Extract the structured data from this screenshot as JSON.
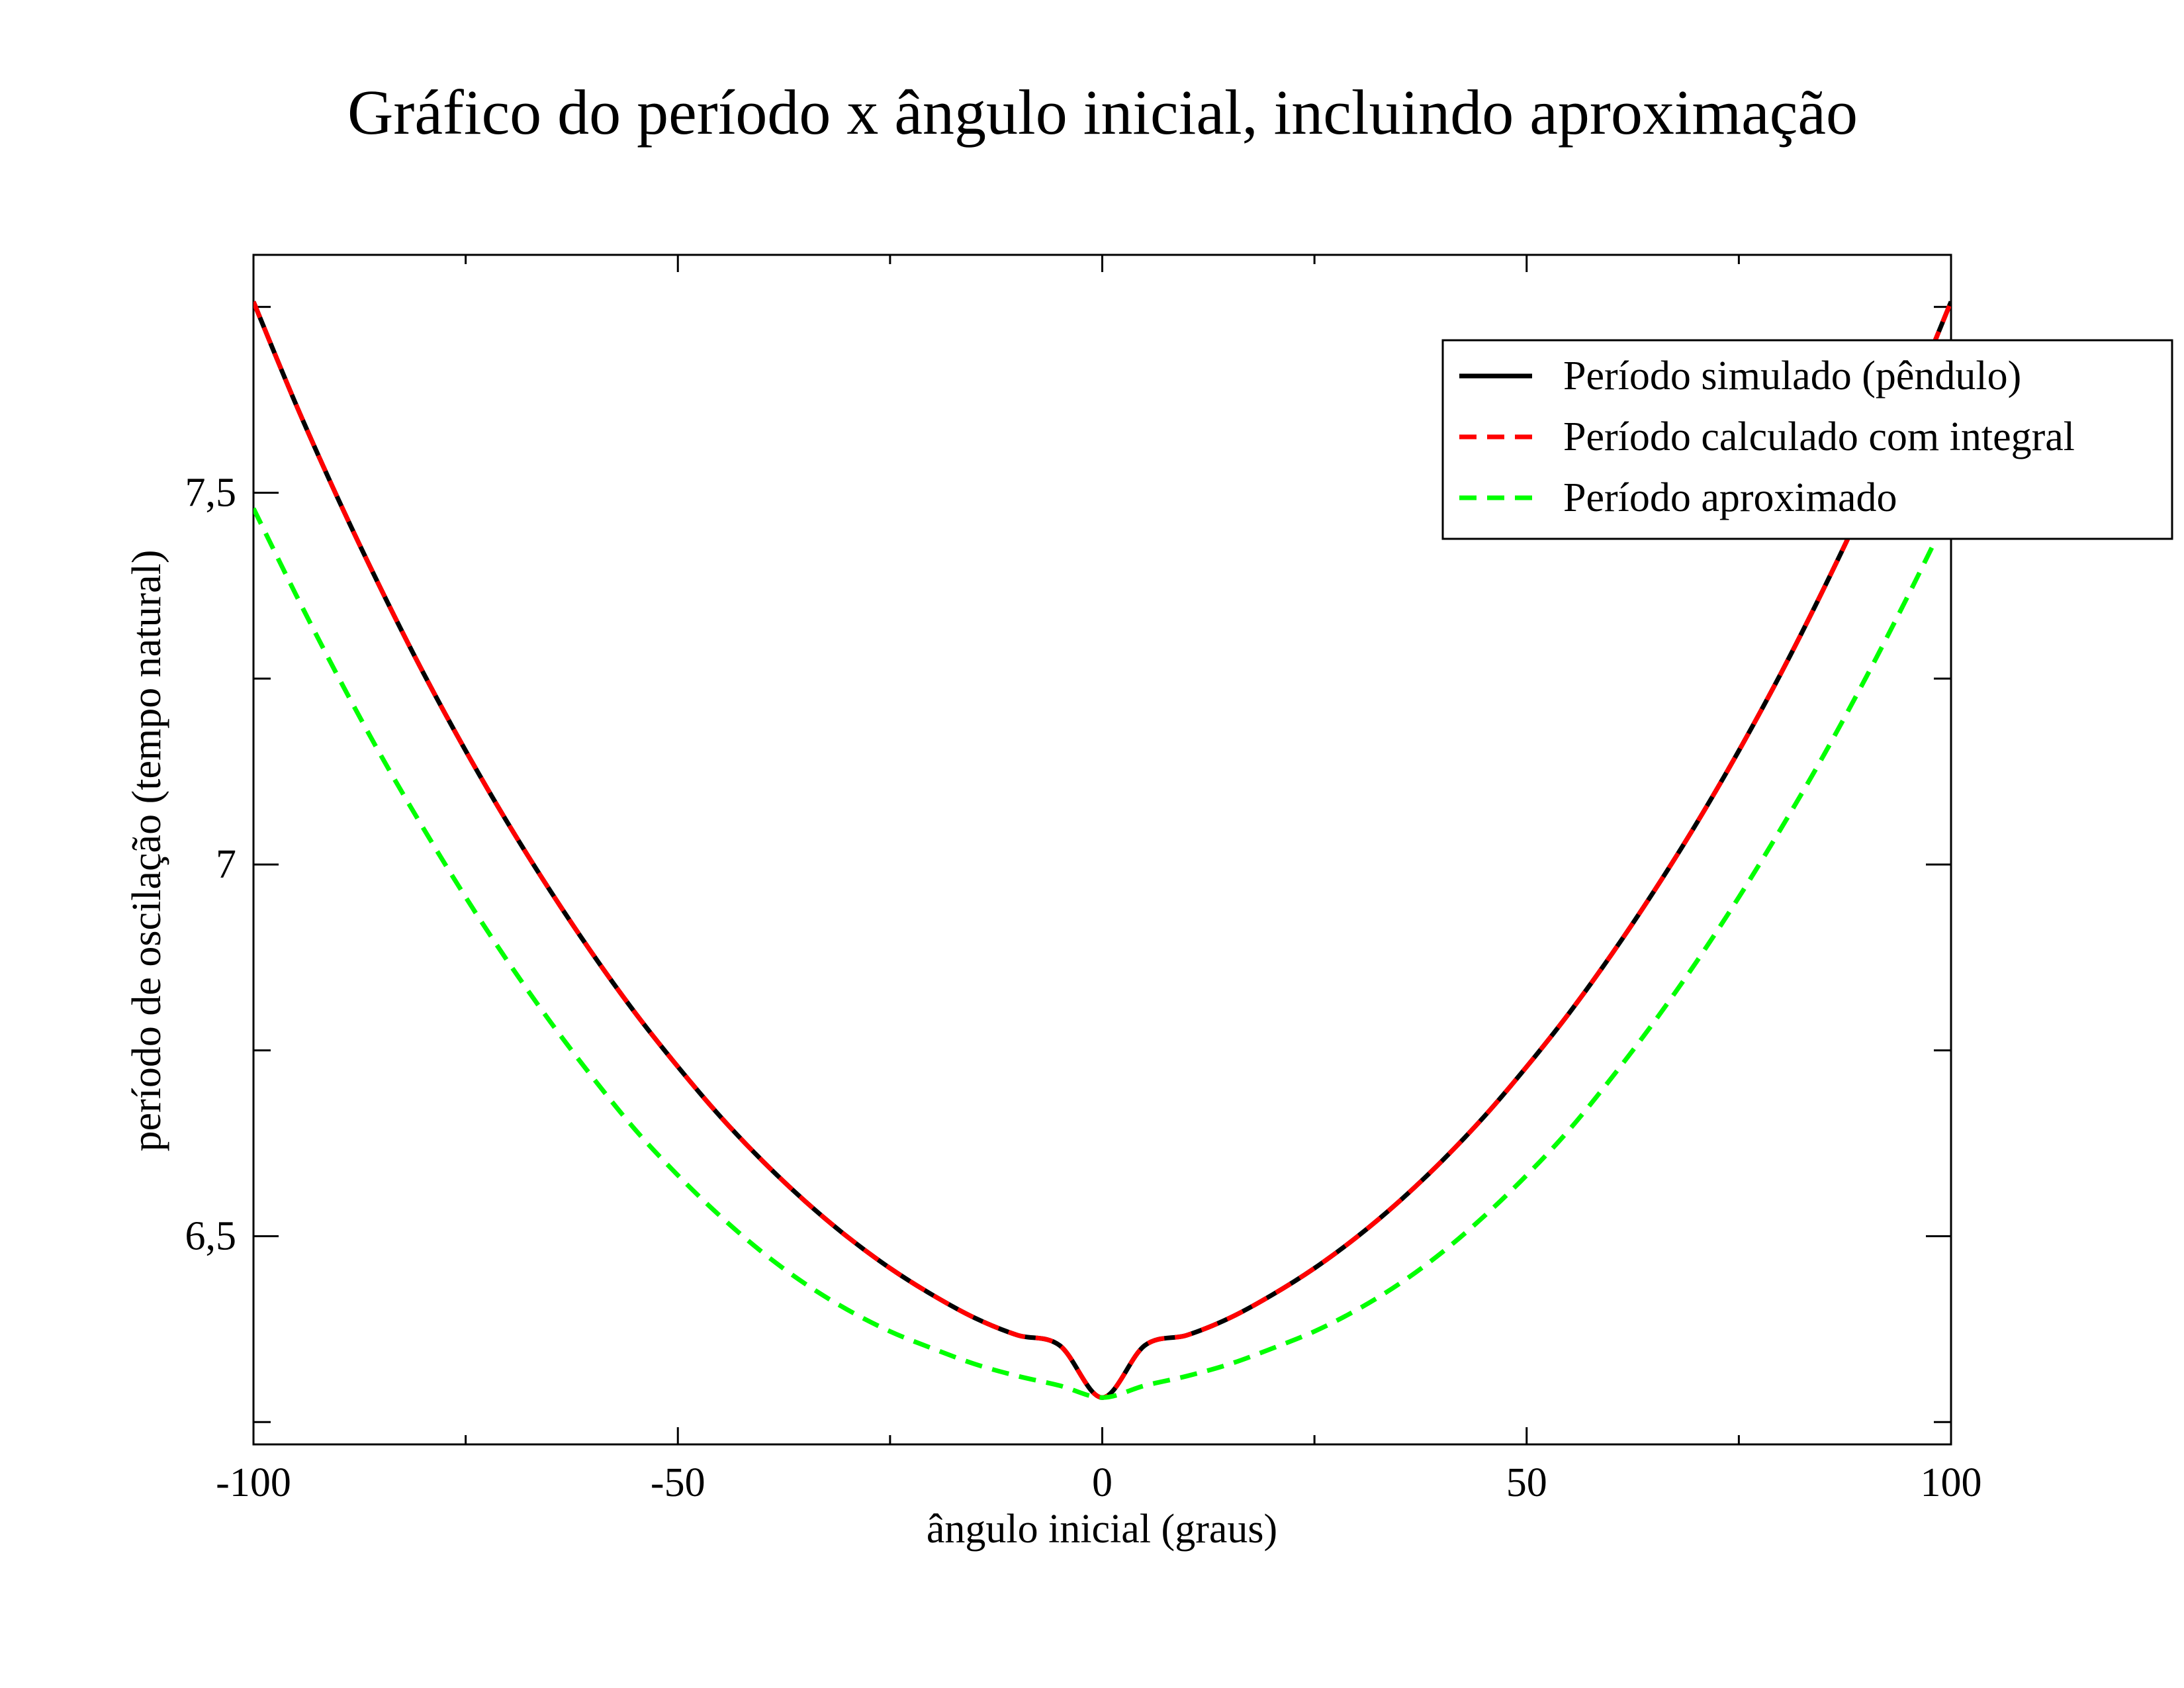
{
  "chart_data": {
    "type": "line",
    "title": "Gráfico do período x ângulo inicial, incluindo aproximação",
    "xlabel": "ângulo inicial (graus)",
    "ylabel": "período de oscilação (tempo natural)",
    "xlim": [
      -100,
      100
    ],
    "ylim": [
      6.22,
      7.82
    ],
    "x_ticks": [
      -100,
      -50,
      0,
      50,
      100
    ],
    "x_tick_labels": [
      "-100",
      "-50",
      "0",
      "50",
      "100"
    ],
    "y_ticks": [
      6.5,
      7,
      7.5
    ],
    "y_tick_labels": [
      "6,5",
      "7",
      "7,5"
    ],
    "grid": false,
    "legend_position": "top-right",
    "x": [
      -100,
      -95,
      -90,
      -85,
      -80,
      -75,
      -70,
      -65,
      -60,
      -55,
      -50,
      -45,
      -40,
      -35,
      -30,
      -25,
      -20,
      -15,
      -10,
      -5,
      0,
      5,
      10,
      15,
      20,
      25,
      30,
      35,
      40,
      45,
      50,
      55,
      60,
      65,
      70,
      75,
      80,
      85,
      90,
      95,
      100
    ],
    "series": [
      {
        "name": "Período simulado (pêndulo)",
        "color": "#000000",
        "style": "solid",
        "values": [
          7.757,
          7.619,
          7.491,
          7.371,
          7.258,
          7.153,
          7.055,
          6.964,
          6.879,
          6.8,
          6.728,
          6.661,
          6.601,
          6.547,
          6.499,
          6.457,
          6.421,
          6.39,
          6.367,
          6.353,
          6.283,
          6.353,
          6.367,
          6.39,
          6.421,
          6.457,
          6.499,
          6.547,
          6.601,
          6.661,
          6.728,
          6.8,
          6.879,
          6.964,
          7.055,
          7.153,
          7.258,
          7.371,
          7.491,
          7.619,
          7.757
        ]
      },
      {
        "name": "Período calculado com integral",
        "color": "#ff0000",
        "style": "dashed",
        "values": [
          7.757,
          7.619,
          7.491,
          7.371,
          7.258,
          7.153,
          7.055,
          6.964,
          6.879,
          6.8,
          6.728,
          6.661,
          6.601,
          6.547,
          6.499,
          6.457,
          6.421,
          6.39,
          6.367,
          6.353,
          6.283,
          6.353,
          6.367,
          6.39,
          6.421,
          6.457,
          6.499,
          6.547,
          6.601,
          6.661,
          6.728,
          6.8,
          6.879,
          6.964,
          7.055,
          7.153,
          7.258,
          7.371,
          7.491,
          7.619,
          7.757
        ]
      },
      {
        "name": "Período aproximado",
        "color": "#00ff00",
        "style": "dashed",
        "values": [
          7.479,
          7.363,
          7.252,
          7.147,
          7.049,
          6.956,
          6.869,
          6.788,
          6.713,
          6.643,
          6.582,
          6.527,
          6.478,
          6.436,
          6.401,
          6.372,
          6.349,
          6.328,
          6.312,
          6.299,
          6.283,
          6.299,
          6.312,
          6.328,
          6.349,
          6.372,
          6.401,
          6.436,
          6.478,
          6.527,
          6.582,
          6.643,
          6.713,
          6.788,
          6.869,
          6.956,
          7.049,
          7.147,
          7.252,
          7.363,
          7.479
        ]
      }
    ]
  }
}
